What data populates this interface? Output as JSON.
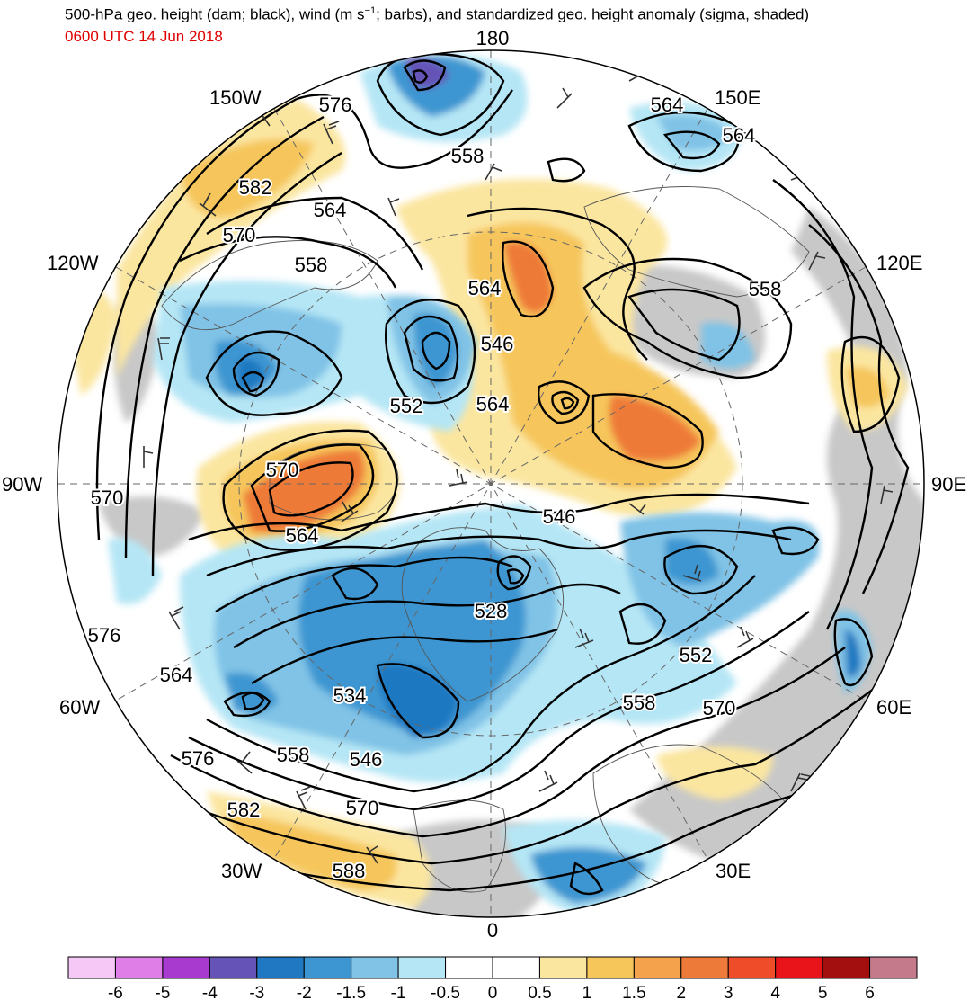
{
  "title": {
    "line1_a": "500-hPa geo. height (dam; black), wind (m s",
    "line1_sup": "−1",
    "line1_b": "; barbs), and standardized geo. height anomaly (sigma, shaded)",
    "line2": "0600 UTC 14 Jun 2018"
  },
  "longitude_labels": {
    "l180": "180",
    "l150W": "150W",
    "l150E": "150E",
    "l120W": "120W",
    "l120E": "120E",
    "l90W": "90W",
    "l90E": "90E",
    "l60W": "60W",
    "l60E": "60E",
    "l30W": "30W",
    "l30E": "30E",
    "l0": "0"
  },
  "contour_labels": [
    "576",
    "564",
    "564",
    "558",
    "582",
    "564",
    "570",
    "558",
    "564",
    "558",
    "546",
    "552",
    "564",
    "570",
    "570",
    "564",
    "546",
    "528",
    "576",
    "552",
    "564",
    "534",
    "558",
    "570",
    "576",
    "558",
    "546",
    "570",
    "582",
    "588"
  ],
  "colorbar": {
    "labels": [
      "-6",
      "-5",
      "-4",
      "-3",
      "-2",
      "-1.5",
      "-1",
      "-0.5",
      "0",
      "0.5",
      "1",
      "1.5",
      "2",
      "3",
      "4",
      "5",
      "6"
    ],
    "colors": [
      "#f6c8f6",
      "#e07ee8",
      "#a93ad0",
      "#6653b8",
      "#1f78c1",
      "#3d96d1",
      "#80c3e6",
      "#b5e6f5",
      "#ffffff",
      "#ffffff",
      "#fbe6a0",
      "#f6c65b",
      "#f4a24b",
      "#ee7a39",
      "#ef4d2a",
      "#e8141a",
      "#a30f0f",
      "#c47a8a"
    ]
  },
  "colors": {
    "title_date": "#e00000",
    "gray_land": "#c8c8c8"
  }
}
